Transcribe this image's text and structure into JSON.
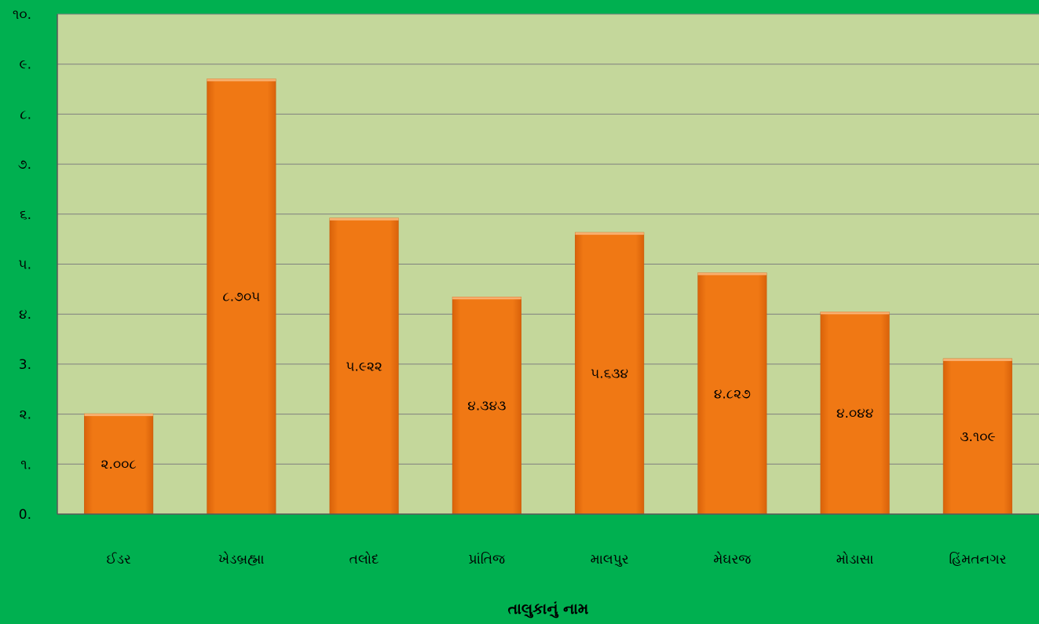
{
  "colors": {
    "background": "#00b050",
    "plot_area": "#c4d79b",
    "bar": "#f07814",
    "gridline": "#7f7f7f"
  },
  "chart_data": {
    "type": "bar",
    "xlabel": "તાલુકાનું નામ",
    "ylabel": "",
    "categories": [
      "ઈડર",
      "ખેડબ્રહ્મા",
      "તલોદ",
      "પ્રાંતિજ",
      "માલપુર",
      "મેઘરજ",
      "મોડાસા",
      "હિંમતનગર"
    ],
    "values": [
      2.008,
      8.705,
      5.922,
      4.343,
      5.634,
      4.827,
      4.044,
      3.109
    ],
    "data_labels": [
      "૨.૦૦૮",
      "૮.૭૦૫",
      "૫.૯૨૨",
      "૪.૩૪૩",
      "૫.૬૩૪",
      "૪.૮૨૭",
      "૪.૦૪૪",
      "૩.૧૦૯"
    ],
    "ylim": [
      0,
      10
    ],
    "yticks": [
      0,
      1,
      2,
      3,
      4,
      5,
      6,
      7,
      8,
      9,
      10
    ],
    "ytick_labels": [
      "0.",
      "૧.",
      "૨.",
      "3.",
      "૪.",
      "૫.",
      "૬.",
      "૭.",
      "૮.",
      "૯.",
      "૧૦."
    ],
    "grid": true,
    "legend": "none"
  }
}
